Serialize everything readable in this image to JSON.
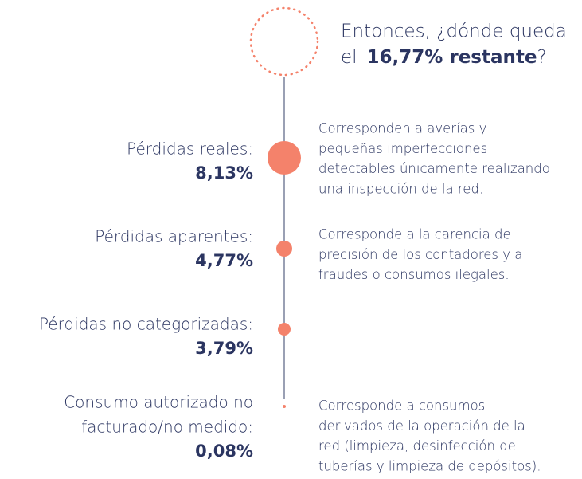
{
  "title": {
    "line1": "Entonces, ¿dónde queda",
    "prefix": "el",
    "highlight": "16,77% restante",
    "suffix": "?"
  },
  "items": [
    {
      "label": [
        "Pérdidas reales:"
      ],
      "value": "8,13%",
      "description": [
        "Corresponden a averías y",
        "pequeñas imperfecciones",
        "detectables únicamente realizando",
        "una inspección de la red."
      ]
    },
    {
      "label": [
        "Pérdidas aparentes:"
      ],
      "value": "4,77%",
      "description": [
        "Corresponde a la carencia de",
        "precisión de los contadores y a",
        "fraudes o consumos ilegales."
      ]
    },
    {
      "label": [
        "Pérdidas no categorizadas:"
      ],
      "value": "3,79%",
      "description": []
    },
    {
      "label": [
        "Consumo autorizado no",
        "facturado/no medido:"
      ],
      "value": "0,08%",
      "description": [
        "Corresponde a consumos",
        "derivados de la operación de la",
        "red (limpieza, desinfección de",
        "tuberías y limpieza de depósitos)."
      ]
    }
  ]
}
